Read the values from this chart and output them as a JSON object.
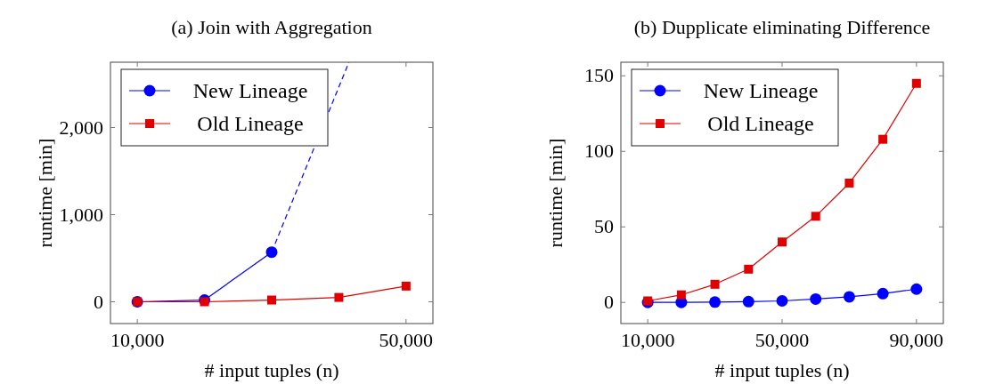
{
  "chart_data": [
    {
      "type": "line",
      "title": "(a) Join with Aggregation",
      "xlabel": "# input tuples (n)",
      "ylabel": "runtime [min]",
      "xlim": [
        6000,
        54000
      ],
      "xticks": [
        {
          "value": 10000,
          "label": "10,000"
        },
        {
          "value": 50000,
          "label": "50,000"
        }
      ],
      "ylim": [
        -250,
        2750
      ],
      "yticks": [
        0,
        {
          "value": 1000,
          "label": "1,000"
        },
        {
          "value": 2000,
          "label": "2,000"
        }
      ],
      "grid": false,
      "legend": "top left",
      "line_style": "solid",
      "series": [
        {
          "name": "New Lineage",
          "color": "#0000ff",
          "marker": "circle",
          "x": [
            10000,
            20000,
            30000
          ],
          "values": [
            0,
            20,
            570
          ]
        },
        {
          "color": "#0000ff",
          "marker": "none",
          "line_style": "dashed",
          "x": [
            30000,
            41500
          ],
          "values": [
            570,
            2750
          ]
        },
        {
          "name": "Old Lineage",
          "color": "#e00000",
          "marker": "square",
          "x": [
            10000,
            20000,
            30000,
            40000,
            50000
          ],
          "values": [
            0,
            0,
            20,
            50,
            180
          ]
        }
      ]
    },
    {
      "type": "line",
      "title": "(b) Dupplicate eliminating Difference",
      "xlabel": "# input tuples (n)",
      "ylabel": "runtime [min]",
      "xlim": [
        2000,
        98000
      ],
      "xticks": [
        {
          "value": 10000,
          "label": "10,000"
        },
        {
          "value": 50000,
          "label": "50,000"
        },
        {
          "value": 90000,
          "label": "90,000"
        }
      ],
      "ylim": [
        -14,
        159
      ],
      "yticks": [
        0,
        50,
        100,
        150
      ],
      "grid": false,
      "legend": "top left",
      "line_style": "solid",
      "series": [
        {
          "name": "New Lineage",
          "color": "#0000ff",
          "marker": "circle",
          "x": [
            10000,
            20000,
            30000,
            40000,
            50000,
            60000,
            70000,
            80000,
            90000
          ],
          "values": [
            0,
            0,
            0.2,
            0.5,
            1,
            2.2,
            3.7,
            5.8,
            8.8
          ]
        },
        {
          "name": "Old Lineage",
          "color": "#e00000",
          "marker": "square",
          "x": [
            10000,
            20000,
            30000,
            40000,
            50000,
            60000,
            70000,
            80000,
            90000
          ],
          "values": [
            1,
            5,
            12,
            22,
            40,
            57,
            79,
            108,
            145
          ]
        }
      ]
    }
  ]
}
